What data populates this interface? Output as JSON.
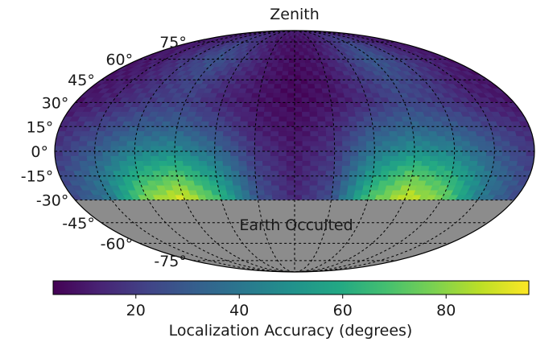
{
  "chart_data": {
    "type": "heatmap",
    "projection": "mollweide",
    "title": "Zenith",
    "latitude_ticks": [
      75,
      60,
      45,
      30,
      15,
      0,
      -15,
      -30,
      -45,
      -60,
      -75
    ],
    "latitude_tick_labels": [
      "75°",
      "60°",
      "45°",
      "30°",
      "15°",
      "0°",
      "-15°",
      "-30°",
      "-45°",
      "-60°",
      "-75°"
    ],
    "occulted_region": {
      "label": "Earth Occulted",
      "lat_range": [
        -90,
        -30
      ],
      "color": "#8c8c8c"
    },
    "colorbar": {
      "label": "Localization Accuracy (degrees)",
      "range": [
        4,
        96
      ],
      "ticks": [
        20,
        40,
        60,
        80
      ],
      "tick_labels": [
        "20",
        "40",
        "60",
        "80"
      ],
      "colormap": "viridis",
      "orientation": "horizontal"
    },
    "grid": true,
    "hotspots": [
      {
        "name": "hotspot-left",
        "lon": -110,
        "lat": -27,
        "peak": 94
      },
      {
        "name": "hotspot-right",
        "lon": 105,
        "lat": -27,
        "peak": 90
      }
    ],
    "intensity_grid": {
      "lon": [
        -180,
        -150,
        -120,
        -90,
        -60,
        -30,
        0,
        30,
        60,
        90,
        120,
        150,
        180
      ],
      "lat": [
        90,
        75,
        60,
        45,
        30,
        15,
        0,
        -15,
        -30
      ],
      "values": [
        [
          12,
          12,
          12,
          12,
          12,
          12,
          12,
          12,
          12,
          12,
          12,
          12,
          12
        ],
        [
          10,
          12,
          16,
          22,
          16,
          10,
          8,
          10,
          16,
          24,
          18,
          12,
          10
        ],
        [
          9,
          12,
          20,
          28,
          20,
          11,
          7,
          10,
          20,
          30,
          22,
          14,
          9
        ],
        [
          9,
          12,
          18,
          24,
          16,
          10,
          6,
          9,
          18,
          26,
          20,
          12,
          9
        ],
        [
          9,
          14,
          20,
          22,
          14,
          9,
          6,
          9,
          16,
          24,
          20,
          14,
          9
        ],
        [
          14,
          22,
          30,
          32,
          24,
          12,
          8,
          14,
          28,
          34,
          30,
          22,
          14
        ],
        [
          18,
          30,
          44,
          48,
          36,
          18,
          10,
          18,
          40,
          50,
          44,
          30,
          18
        ],
        [
          22,
          38,
          62,
          72,
          52,
          24,
          12,
          22,
          56,
          74,
          62,
          38,
          22
        ],
        [
          24,
          40,
          80,
          92,
          66,
          28,
          14,
          26,
          70,
          90,
          78,
          42,
          24
        ]
      ]
    }
  }
}
